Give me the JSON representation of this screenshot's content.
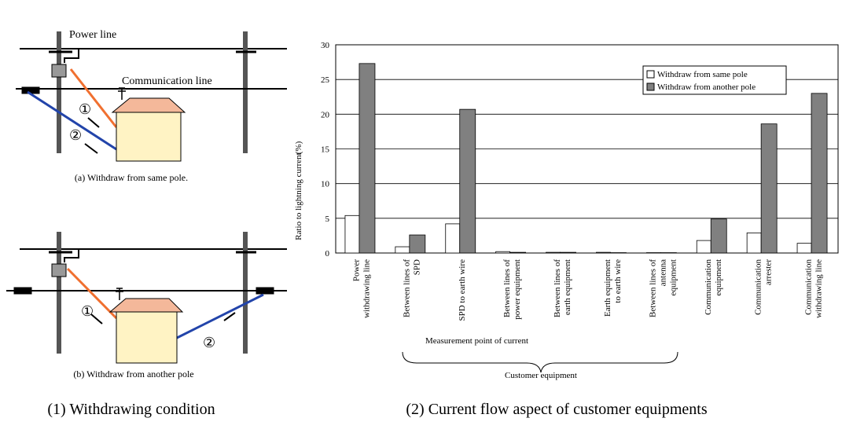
{
  "diagrams": {
    "power_line": "Power line",
    "communication_line": "Communication line",
    "a": {
      "caption": "(a) Withdraw from same pole.",
      "mark1": "①",
      "mark2": "②"
    },
    "b": {
      "caption": "(b) Withdraw from another pole",
      "mark1": "①",
      "mark2": "②"
    }
  },
  "captions": [
    "(1) Withdrawing condition",
    "(2) Current flow aspect of customer equipments"
  ],
  "chart_data": {
    "type": "bar",
    "categories": [
      [
        "Power",
        "withdrawing line"
      ],
      [
        "Between lines of",
        "SPD"
      ],
      [
        "SPD to earth wire"
      ],
      [
        "Between lines of",
        "power equipment"
      ],
      [
        "Between lines of",
        "earth equipment"
      ],
      [
        "Earth equipment",
        "to earth wire"
      ],
      [
        "Between lines of",
        "antenna",
        "equipment"
      ],
      [
        "Communication",
        "equipment"
      ],
      [
        "Communication",
        "arrester"
      ],
      [
        "Communication",
        "withdrawing line"
      ]
    ],
    "series": [
      {
        "name": "Withdraw from same pole",
        "color": "#ffffff",
        "values": [
          5.4,
          0.9,
          4.2,
          0.2,
          0.1,
          0.1,
          0.05,
          1.8,
          2.9,
          1.4
        ]
      },
      {
        "name": "Withdraw from another pole",
        "color": "#808080",
        "values": [
          27.3,
          2.6,
          20.7,
          0.1,
          0.1,
          0.05,
          0.05,
          4.9,
          18.6,
          23.0
        ]
      }
    ],
    "ylim": [
      0,
      30
    ],
    "yticks": [
      0,
      5,
      10,
      15,
      20,
      25,
      30
    ],
    "grid": true,
    "legend": "upper right",
    "ylabel": "Ratio to lightning current",
    "ylabel_unit": "(%)",
    "xlabel": "Measurement point of current",
    "group_label": "Customer equipment"
  }
}
